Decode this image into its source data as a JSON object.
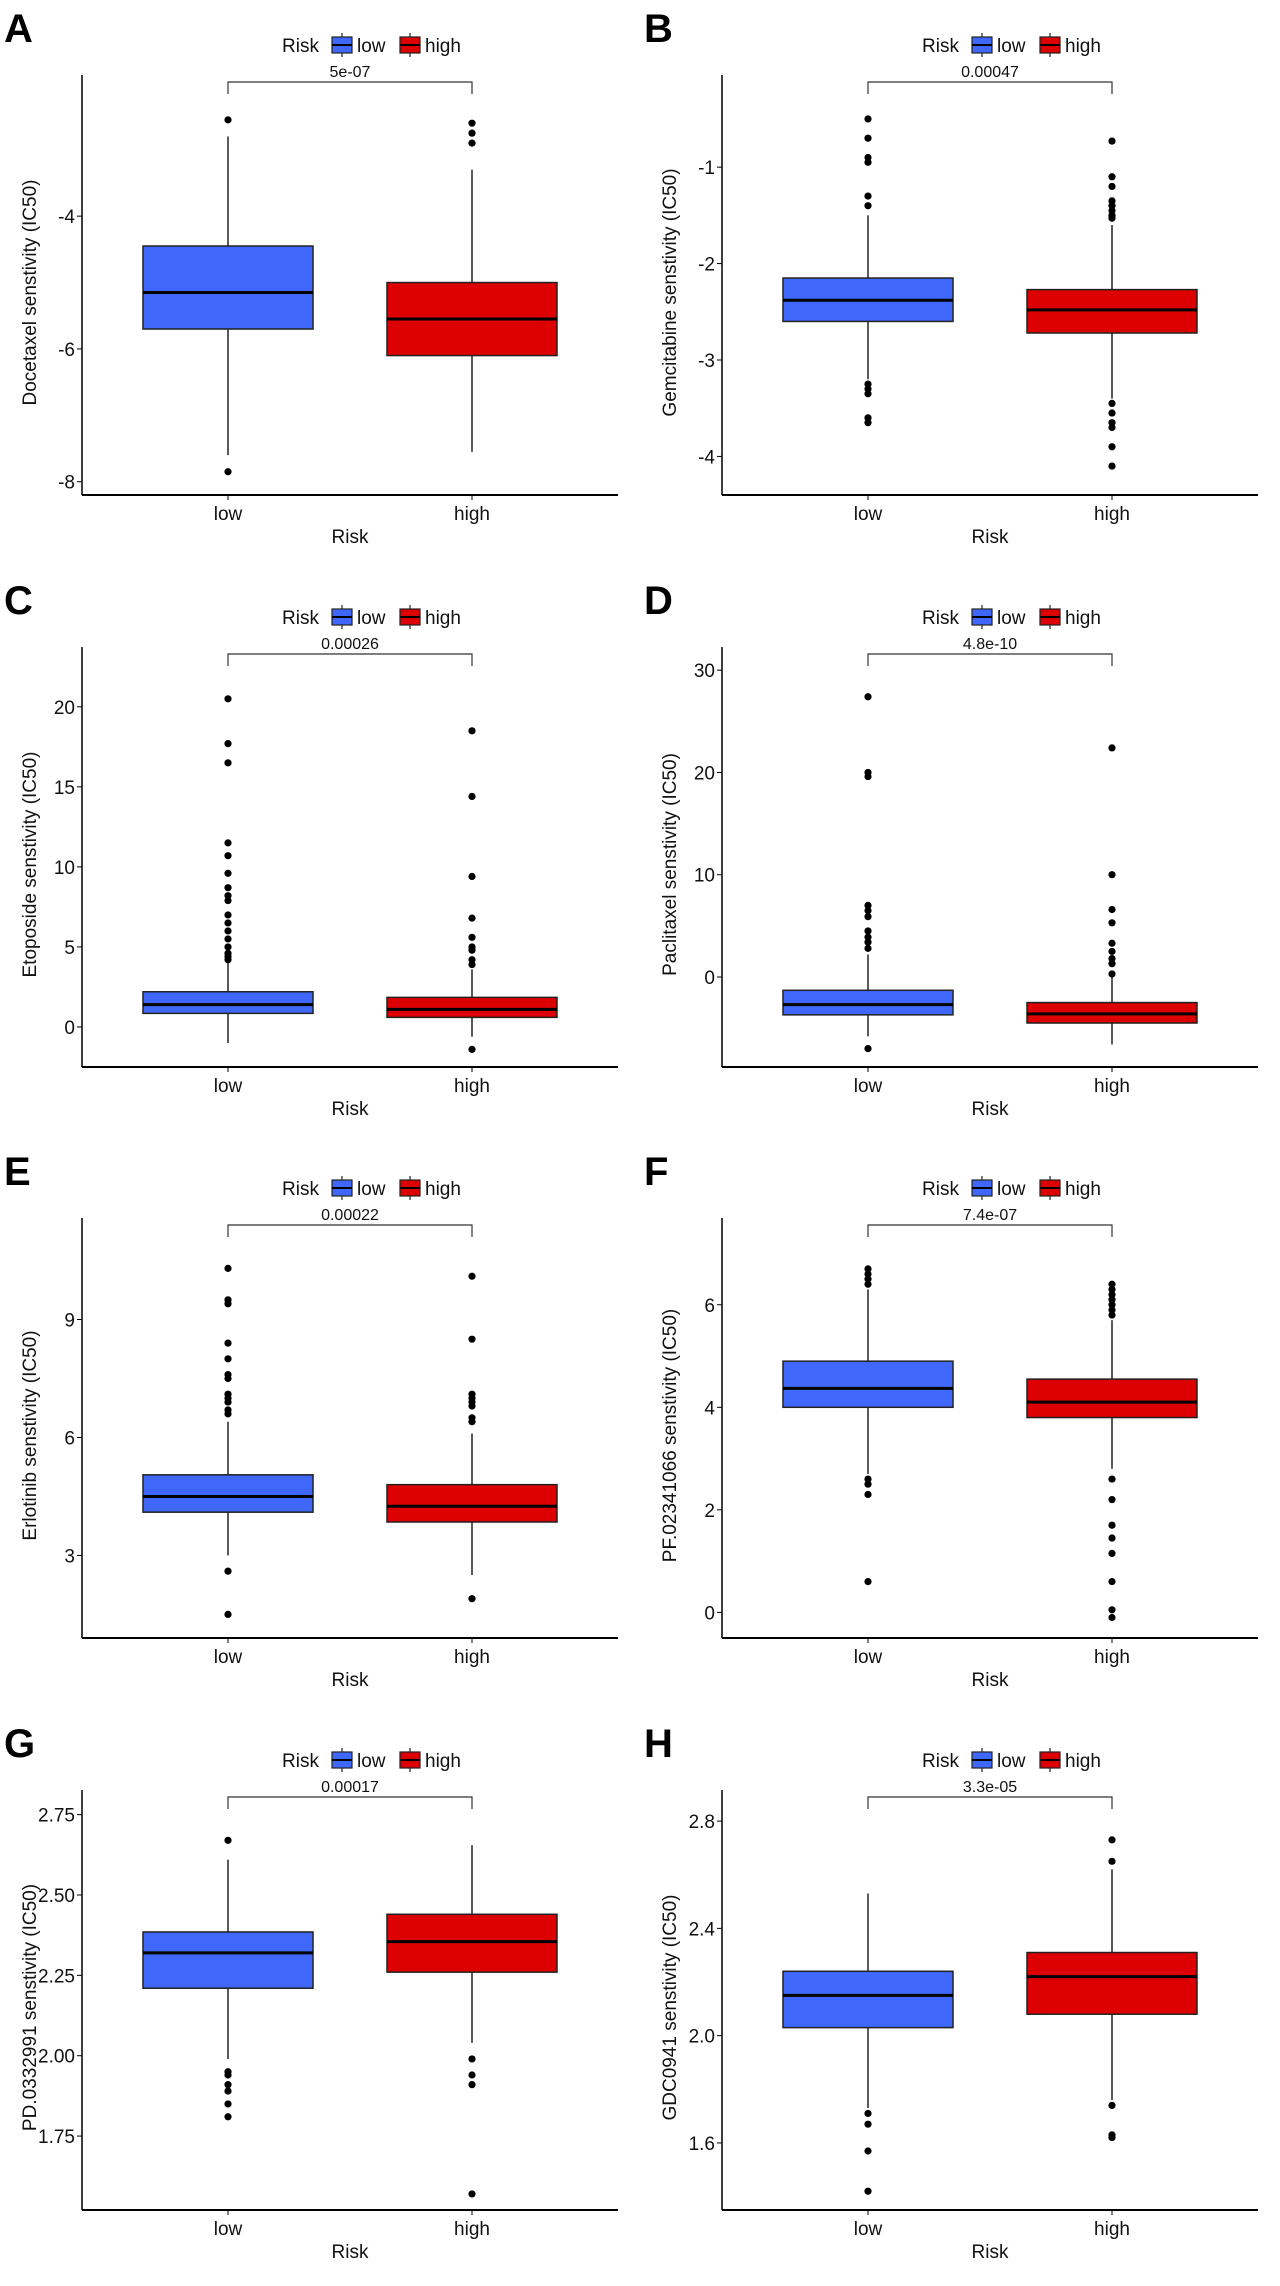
{
  "legend": {
    "title": "Risk",
    "low": "low",
    "high": "high"
  },
  "colors": {
    "low": "#3f68fb",
    "high": "#dc0000"
  },
  "chart_data": [
    {
      "panel": "A",
      "type": "box",
      "title": "",
      "xlabel": "Risk",
      "ylabel": "Docetaxel senstivity (IC50)",
      "categories": [
        "low",
        "high"
      ],
      "ylim": [
        -8.2,
        -2.1
      ],
      "yticks": [
        "-4",
        "-6",
        "-8"
      ],
      "ytick_values": [
        -4,
        -6,
        -8
      ],
      "pvalue": "5e-07",
      "series": [
        {
          "name": "low",
          "q1": -5.7,
          "median": -5.15,
          "q3": -4.45,
          "whisker_low": -7.6,
          "whisker_high": -2.8,
          "outliers": [
            -2.55,
            -7.85
          ]
        },
        {
          "name": "high",
          "q1": -6.1,
          "median": -5.55,
          "q3": -5.0,
          "whisker_low": -7.55,
          "whisker_high": -3.3,
          "outliers": [
            -2.6,
            -2.75,
            -2.9
          ]
        }
      ]
    },
    {
      "panel": "B",
      "type": "box",
      "title": "",
      "xlabel": "Risk",
      "ylabel": "Gemcitabine senstivity (IC50)",
      "categories": [
        "low",
        "high"
      ],
      "ylim": [
        -4.4,
        -0.2
      ],
      "yticks": [
        "-1",
        "-2",
        "-3",
        "-4"
      ],
      "ytick_values": [
        -1,
        -2,
        -3,
        -4
      ],
      "pvalue": "0.00047",
      "series": [
        {
          "name": "low",
          "q1": -2.6,
          "median": -2.38,
          "q3": -2.15,
          "whisker_low": -3.2,
          "whisker_high": -1.5,
          "outliers": [
            -0.5,
            -0.7,
            -0.9,
            -0.95,
            -1.3,
            -1.4,
            -3.25,
            -3.3,
            -3.35,
            -3.6,
            -3.65
          ]
        },
        {
          "name": "high",
          "q1": -2.72,
          "median": -2.48,
          "q3": -2.27,
          "whisker_low": -3.4,
          "whisker_high": -1.6,
          "outliers": [
            -0.73,
            -1.1,
            -1.2,
            -1.35,
            -1.4,
            -1.45,
            -1.5,
            -1.53,
            -3.45,
            -3.55,
            -3.65,
            -3.7,
            -3.9,
            -4.1
          ]
        }
      ]
    },
    {
      "panel": "C",
      "type": "box",
      "title": "",
      "xlabel": "Risk",
      "ylabel": "Etoposide senstivity (IC50)",
      "categories": [
        "low",
        "high"
      ],
      "ylim": [
        -2.5,
        22.8
      ],
      "yticks": [
        "0",
        "5",
        "10",
        "15",
        "20"
      ],
      "ytick_values": [
        0,
        5,
        10,
        15,
        20
      ],
      "pvalue": "0.00026",
      "series": [
        {
          "name": "low",
          "q1": 0.85,
          "median": 1.4,
          "q3": 2.2,
          "whisker_low": -1.0,
          "whisker_high": 4.1,
          "outliers": [
            4.2,
            4.4,
            4.6,
            5.0,
            5.5,
            6.0,
            6.5,
            7.0,
            7.9,
            8.2,
            8.7,
            9.6,
            10.7,
            11.5,
            16.5,
            17.7,
            20.5
          ]
        },
        {
          "name": "high",
          "q1": 0.6,
          "median": 1.1,
          "q3": 1.85,
          "whisker_low": -0.6,
          "whisker_high": 3.6,
          "outliers": [
            3.9,
            4.2,
            4.8,
            5.0,
            5.6,
            6.8,
            9.4,
            14.4,
            18.5,
            -1.4
          ]
        }
      ]
    },
    {
      "panel": "D",
      "type": "box",
      "title": "",
      "xlabel": "Risk",
      "ylabel": "Paclitaxel senstivity (IC50)",
      "categories": [
        "low",
        "high"
      ],
      "ylim": [
        -8.8,
        30.8
      ],
      "yticks": [
        "0",
        "10",
        "20",
        "30"
      ],
      "ytick_values": [
        0,
        10,
        20,
        30
      ],
      "pvalue": "4.8e-10",
      "series": [
        {
          "name": "low",
          "q1": -3.7,
          "median": -2.7,
          "q3": -1.3,
          "whisker_low": -5.8,
          "whisker_high": 2.2,
          "outliers": [
            2.8,
            3.4,
            3.9,
            4.5,
            5.9,
            6.5,
            7.0,
            19.6,
            20.0,
            27.4,
            -7.0
          ]
        },
        {
          "name": "high",
          "q1": -4.5,
          "median": -3.6,
          "q3": -2.5,
          "whisker_low": -6.6,
          "whisker_high": 0.2,
          "outliers": [
            0.3,
            1.3,
            1.8,
            2.5,
            3.3,
            5.3,
            6.6,
            10.0,
            22.4
          ]
        }
      ]
    },
    {
      "panel": "E",
      "type": "box",
      "title": "",
      "xlabel": "Risk",
      "ylabel": "Erlotinib senstivity (IC50)",
      "categories": [
        "low",
        "high"
      ],
      "ylim": [
        0.9,
        11.2
      ],
      "yticks": [
        "3",
        "6",
        "9"
      ],
      "ytick_values": [
        3,
        6,
        9
      ],
      "pvalue": "0.00022",
      "series": [
        {
          "name": "low",
          "q1": 4.1,
          "median": 4.5,
          "q3": 5.05,
          "whisker_low": 3.0,
          "whisker_high": 6.4,
          "outliers": [
            6.6,
            6.7,
            6.9,
            7.0,
            7.1,
            7.5,
            7.6,
            8.0,
            8.4,
            9.4,
            9.5,
            10.3,
            2.6,
            1.5
          ]
        },
        {
          "name": "high",
          "q1": 3.85,
          "median": 4.25,
          "q3": 4.8,
          "whisker_low": 2.5,
          "whisker_high": 6.1,
          "outliers": [
            6.4,
            6.5,
            6.8,
            6.9,
            7.0,
            7.1,
            8.5,
            10.1,
            1.9
          ]
        }
      ]
    },
    {
      "panel": "F",
      "type": "box",
      "title": "",
      "xlabel": "Risk",
      "ylabel": "PF.02341066 senstivity (IC50)",
      "categories": [
        "low",
        "high"
      ],
      "ylim": [
        -0.5,
        7.4
      ],
      "yticks": [
        "0",
        "2",
        "4",
        "6"
      ],
      "ytick_values": [
        0,
        2,
        4,
        6
      ],
      "pvalue": "7.4e-07",
      "series": [
        {
          "name": "low",
          "q1": 4.0,
          "median": 4.37,
          "q3": 4.9,
          "whisker_low": 2.7,
          "whisker_high": 6.3,
          "outliers": [
            6.4,
            6.5,
            6.6,
            6.7,
            2.6,
            2.5,
            2.3,
            0.6
          ]
        },
        {
          "name": "high",
          "q1": 3.8,
          "median": 4.1,
          "q3": 4.55,
          "whisker_low": 2.8,
          "whisker_high": 5.7,
          "outliers": [
            5.8,
            5.9,
            6.0,
            6.1,
            6.2,
            6.3,
            6.4,
            2.6,
            2.2,
            1.7,
            1.45,
            1.15,
            0.6,
            0.05,
            -0.1
          ]
        }
      ]
    },
    {
      "panel": "G",
      "type": "box",
      "title": "",
      "xlabel": "Risk",
      "ylabel": "PD.0332991 senstivity (IC50)",
      "categories": [
        "low",
        "high"
      ],
      "ylim": [
        1.52,
        2.78
      ],
      "yticks": [
        "1.75",
        "2.00",
        "2.25",
        "2.50",
        "2.75"
      ],
      "ytick_values": [
        1.75,
        2.0,
        2.25,
        2.5,
        2.75
      ],
      "pvalue": "0.00017",
      "series": [
        {
          "name": "low",
          "q1": 2.21,
          "median": 2.32,
          "q3": 2.385,
          "whisker_low": 1.99,
          "whisker_high": 2.61,
          "outliers": [
            2.67,
            1.95,
            1.94,
            1.91,
            1.89,
            1.85,
            1.81
          ]
        },
        {
          "name": "high",
          "q1": 2.26,
          "median": 2.355,
          "q3": 2.44,
          "whisker_low": 2.04,
          "whisker_high": 2.655,
          "outliers": [
            1.99,
            1.94,
            1.91,
            1.57
          ]
        }
      ]
    },
    {
      "panel": "H",
      "type": "box",
      "title": "",
      "xlabel": "Risk",
      "ylabel": "GDC0941 senstivity (IC50)",
      "categories": [
        "low",
        "high"
      ],
      "ylim": [
        1.35,
        2.86
      ],
      "yticks": [
        "1.6",
        "2.0",
        "2.4",
        "2.8"
      ],
      "ytick_values": [
        1.6,
        2.0,
        2.4,
        2.8
      ],
      "pvalue": "3.3e-05",
      "series": [
        {
          "name": "low",
          "q1": 2.03,
          "median": 2.15,
          "q3": 2.24,
          "whisker_low": 1.73,
          "whisker_high": 2.53,
          "outliers": [
            1.71,
            1.67,
            1.57,
            1.42
          ]
        },
        {
          "name": "high",
          "q1": 2.08,
          "median": 2.22,
          "q3": 2.31,
          "whisker_low": 1.76,
          "whisker_high": 2.62,
          "outliers": [
            2.73,
            2.65,
            1.74,
            1.63,
            1.62
          ]
        }
      ]
    }
  ]
}
